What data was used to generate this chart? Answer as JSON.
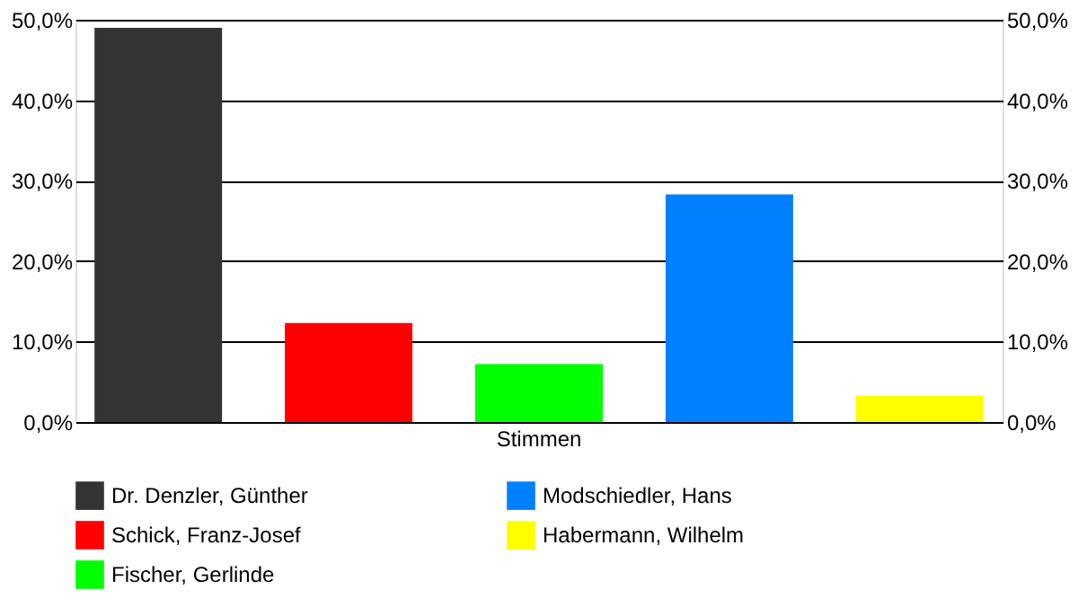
{
  "chart_data": {
    "type": "bar",
    "categories": [
      "Stimmen"
    ],
    "series": [
      {
        "name": "Dr. Denzler, Günther",
        "color": "#333333",
        "values": [
          49.0
        ]
      },
      {
        "name": "Schick, Franz-Josef",
        "color": "#ff0000",
        "values": [
          12.3
        ]
      },
      {
        "name": "Fischer, Gerlinde",
        "color": "#00ff00",
        "values": [
          7.2
        ]
      },
      {
        "name": "Modschiedler, Hans",
        "color": "#0080ff",
        "values": [
          28.3
        ]
      },
      {
        "name": "Habermann, Wilhelm",
        "color": "#ffff00",
        "values": [
          3.3
        ]
      }
    ],
    "ylim": [
      0,
      50
    ],
    "yticks": [
      {
        "value": 0,
        "label": "0,0%"
      },
      {
        "value": 10,
        "label": "10,0%"
      },
      {
        "value": 20,
        "label": "20,0%"
      },
      {
        "value": 30,
        "label": "30,0%"
      },
      {
        "value": 40,
        "label": "40,0%"
      },
      {
        "value": 50,
        "label": "50,0%"
      }
    ],
    "grid": "y",
    "legend": "bottom"
  }
}
